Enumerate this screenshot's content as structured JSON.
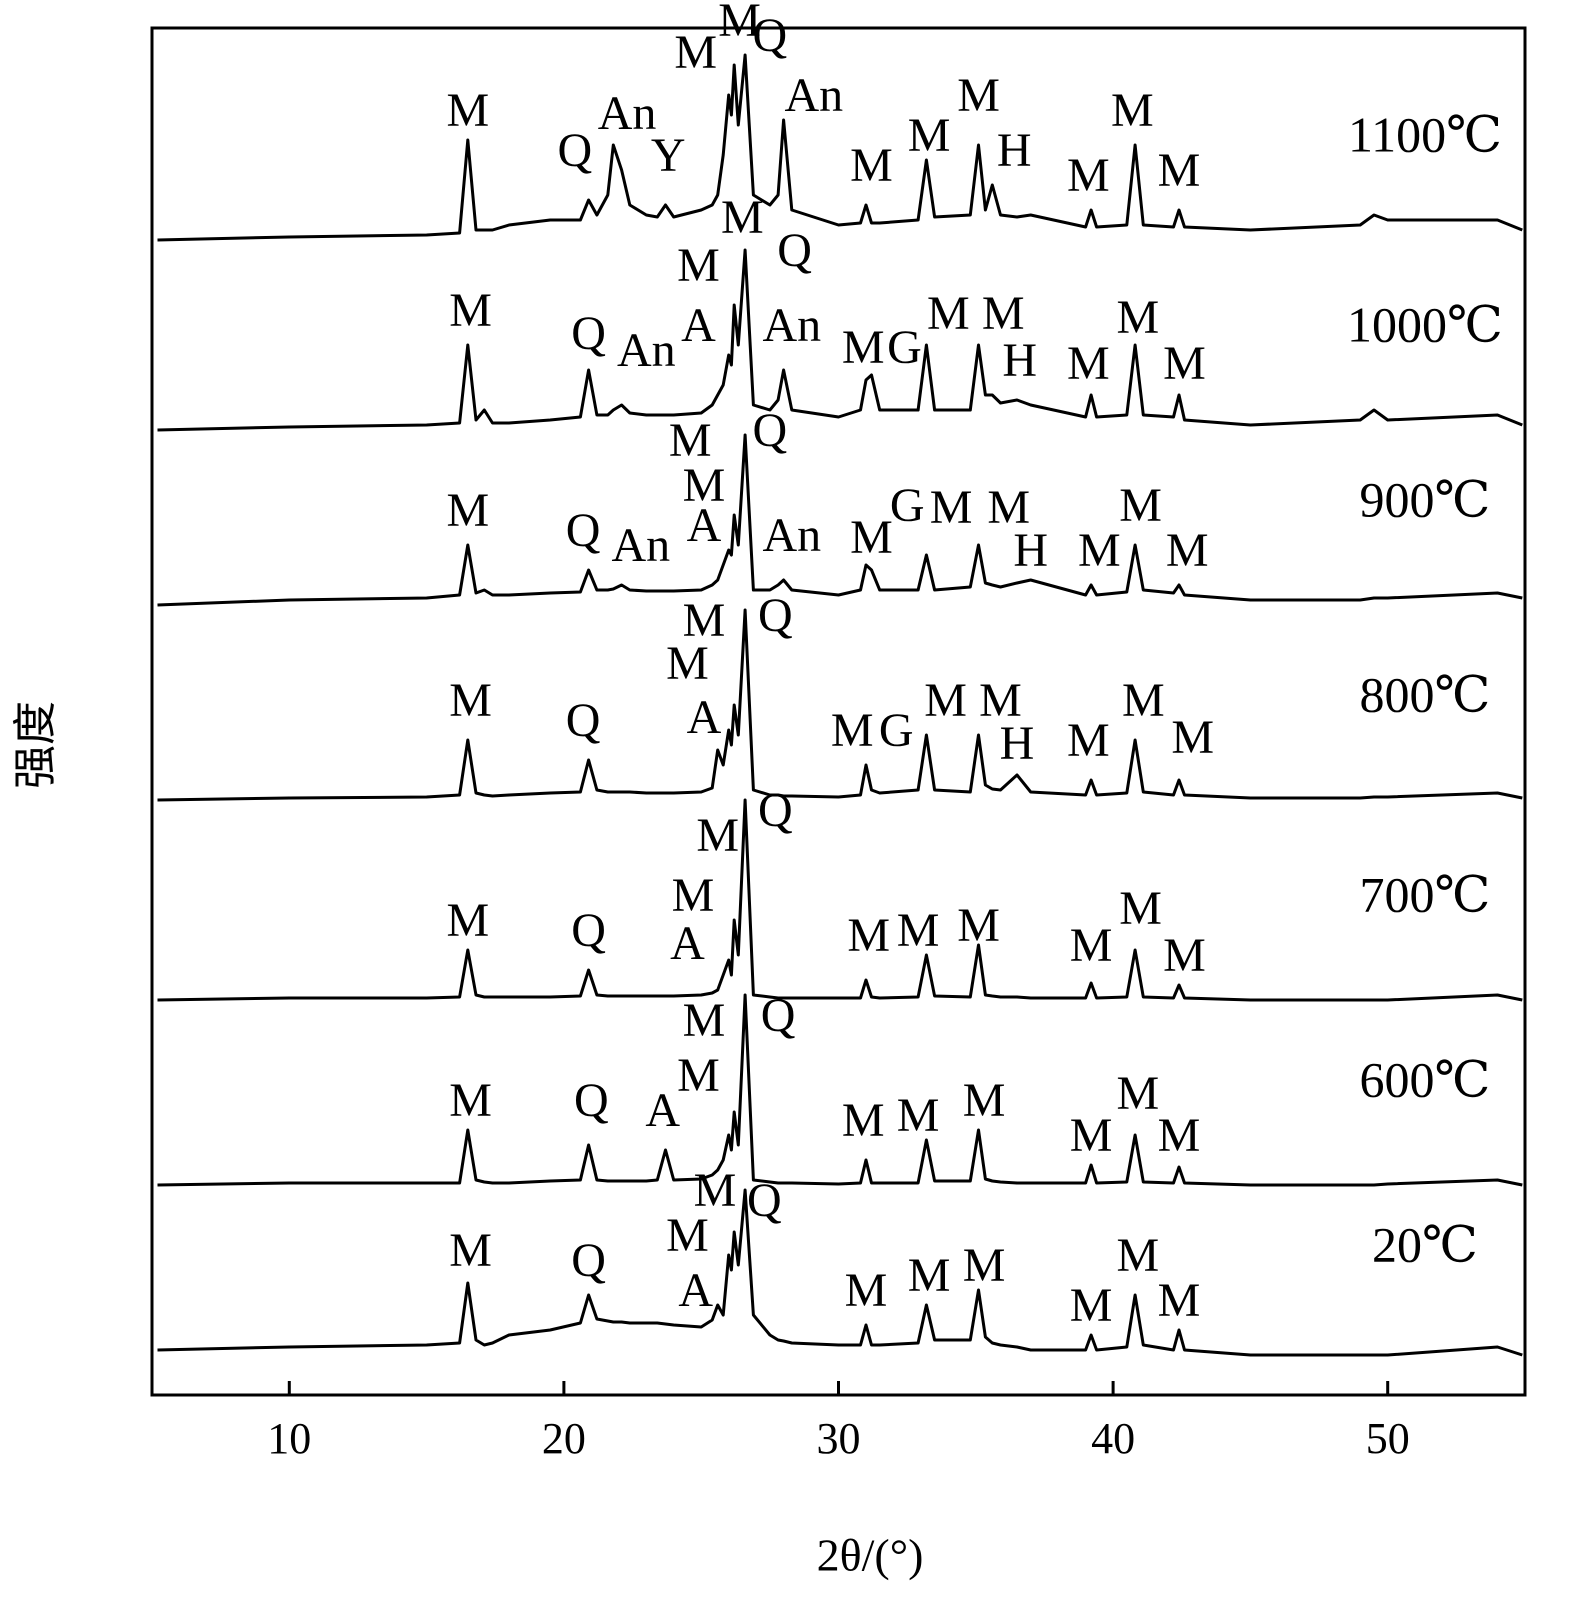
{
  "chart_data": {
    "type": "line",
    "xlabel": "2θ/(°)",
    "ylabel": "强度",
    "xlim": [
      5,
      55
    ],
    "xticks": [
      10,
      20,
      30,
      40,
      50
    ],
    "ylim": [
      0,
      1367
    ],
    "grid": false,
    "x": [
      5.2,
      10,
      15,
      16.2,
      16.5,
      16.8,
      17.1,
      17.4,
      18,
      19.5,
      20.6,
      20.9,
      21.2,
      21.6,
      21.8,
      22.1,
      22.4,
      23,
      23.4,
      23.7,
      24,
      25,
      25.4,
      25.6,
      25.8,
      26.0,
      26.1,
      26.2,
      26.35,
      26.6,
      26.9,
      27.5,
      27.8,
      28,
      28.3,
      30,
      30.8,
      31,
      31.2,
      31.5,
      32.9,
      33.2,
      33.5,
      34.8,
      35.1,
      35.35,
      35.6,
      35.9,
      36.5,
      37,
      39,
      39.2,
      39.4,
      40.5,
      40.8,
      41.1,
      42.2,
      42.4,
      42.6,
      45,
      49,
      49.5,
      50,
      54,
      54.9
    ],
    "series": [
      {
        "name": "20℃",
        "color": "#000000",
        "values": [
          45,
          48,
          50,
          52,
          112,
          55,
          50,
          52,
          60,
          65,
          72,
          100,
          76,
          74,
          73,
          73,
          72,
          72,
          72,
          71,
          70,
          68,
          75,
          90,
          80,
          140,
          125,
          163,
          130,
          205,
          80,
          60,
          55,
          54,
          52,
          50,
          50,
          70,
          50,
          50,
          52,
          90,
          55,
          55,
          105,
          58,
          52,
          50,
          48,
          45,
          45,
          60,
          45,
          48,
          100,
          50,
          45,
          65,
          45,
          40,
          40,
          40,
          40,
          48,
          40
        ]
      },
      {
        "name": "600℃",
        "color": "#000000",
        "values": [
          210,
          212,
          212,
          212,
          265,
          215,
          213,
          212,
          212,
          214,
          215,
          250,
          215,
          214,
          214,
          214,
          214,
          214,
          215,
          245,
          215,
          216,
          220,
          225,
          235,
          260,
          245,
          283,
          250,
          400,
          215,
          213,
          212,
          212,
          212,
          211,
          212,
          235,
          212,
          212,
          212,
          255,
          214,
          214,
          265,
          216,
          214,
          213,
          212,
          212,
          212,
          230,
          212,
          213,
          260,
          213,
          212,
          228,
          212,
          210,
          210,
          210,
          211,
          215,
          210
        ]
      },
      {
        "name": "700℃",
        "color": "#000000",
        "values": [
          395,
          397,
          397,
          398,
          445,
          400,
          398,
          398,
          398,
          398,
          399,
          425,
          400,
          399,
          399,
          399,
          399,
          399,
          399,
          399,
          399,
          400,
          402,
          405,
          420,
          435,
          420,
          475,
          440,
          595,
          400,
          398,
          397,
          397,
          397,
          397,
          397,
          415,
          398,
          397,
          398,
          440,
          399,
          398,
          450,
          400,
          399,
          398,
          398,
          397,
          397,
          412,
          397,
          398,
          445,
          398,
          397,
          410,
          397,
          395,
          395,
          395,
          395,
          400,
          395
        ]
      },
      {
        "name": "800℃",
        "color": "#000000",
        "values": [
          595,
          597,
          598,
          600,
          655,
          602,
          600,
          599,
          600,
          602,
          603,
          635,
          605,
          603,
          603,
          603,
          603,
          602,
          602,
          602,
          602,
          603,
          607,
          645,
          630,
          665,
          650,
          690,
          660,
          785,
          605,
          600,
          600,
          599,
          599,
          598,
          600,
          630,
          605,
          602,
          605,
          660,
          605,
          603,
          660,
          610,
          606,
          605,
          620,
          603,
          600,
          615,
          600,
          602,
          655,
          603,
          600,
          615,
          600,
          597,
          597,
          598,
          598,
          602,
          597
        ]
      },
      {
        "name": "900℃",
        "color": "#000000",
        "values": [
          790,
          795,
          797,
          800,
          850,
          802,
          805,
          800,
          800,
          802,
          803,
          825,
          805,
          805,
          806,
          810,
          805,
          804,
          804,
          804,
          804,
          805,
          810,
          815,
          830,
          845,
          840,
          880,
          850,
          960,
          805,
          805,
          810,
          815,
          805,
          800,
          805,
          830,
          825,
          805,
          805,
          840,
          805,
          808,
          850,
          812,
          810,
          808,
          812,
          815,
          800,
          810,
          800,
          803,
          850,
          805,
          802,
          810,
          800,
          795,
          795,
          797,
          797,
          802,
          797
        ]
      },
      {
        "name": "1000℃",
        "color": "#000000",
        "values": [
          965,
          968,
          970,
          972,
          1050,
          975,
          985,
          972,
          972,
          975,
          978,
          1025,
          980,
          980,
          985,
          990,
          982,
          980,
          980,
          980,
          980,
          982,
          990,
          1000,
          1010,
          1040,
          1030,
          1090,
          1050,
          1145,
          990,
          985,
          995,
          1025,
          985,
          978,
          985,
          1015,
          1020,
          985,
          985,
          1050,
          985,
          985,
          1050,
          1000,
          1000,
          992,
          995,
          990,
          978,
          1000,
          978,
          980,
          1050,
          980,
          978,
          1000,
          975,
          970,
          975,
          985,
          975,
          980,
          970
        ]
      },
      {
        "name": "1100℃",
        "color": "#000000",
        "values": [
          1155,
          1158,
          1160,
          1162,
          1255,
          1165,
          1165,
          1165,
          1170,
          1175,
          1175,
          1195,
          1180,
          1200,
          1250,
          1225,
          1190,
          1180,
          1178,
          1190,
          1178,
          1185,
          1190,
          1200,
          1240,
          1300,
          1280,
          1330,
          1270,
          1340,
          1200,
          1190,
          1200,
          1275,
          1185,
          1170,
          1172,
          1190,
          1172,
          1172,
          1175,
          1235,
          1178,
          1180,
          1250,
          1185,
          1210,
          1180,
          1178,
          1180,
          1168,
          1185,
          1168,
          1170,
          1250,
          1170,
          1168,
          1185,
          1168,
          1165,
          1170,
          1180,
          1175,
          1175,
          1165
        ]
      }
    ],
    "annotations": [
      {
        "text": "M",
        "x": 16.6,
        "y": 140
      },
      {
        "text": "Q",
        "x": 20.9,
        "y": 130
      },
      {
        "text": "M",
        "x": 24.5,
        "y": 155
      },
      {
        "text": "A",
        "x": 24.8,
        "y": 100
      },
      {
        "text": "M",
        "x": 25.5,
        "y": 200
      },
      {
        "text": "Q",
        "x": 27.3,
        "y": 190
      },
      {
        "text": "M",
        "x": 31,
        "y": 100
      },
      {
        "text": "M",
        "x": 33.3,
        "y": 115
      },
      {
        "text": "M",
        "x": 35.3,
        "y": 125
      },
      {
        "text": "M",
        "x": 39.2,
        "y": 85
      },
      {
        "text": "M",
        "x": 40.9,
        "y": 135
      },
      {
        "text": "M",
        "x": 42.4,
        "y": 90
      },
      {
        "text": "M",
        "x": 16.6,
        "y": 290
      },
      {
        "text": "Q",
        "x": 21,
        "y": 290
      },
      {
        "text": "A",
        "x": 23.6,
        "y": 280
      },
      {
        "text": "M",
        "x": 24.9,
        "y": 315
      },
      {
        "text": "M",
        "x": 25.1,
        "y": 370
      },
      {
        "text": "Q",
        "x": 27.8,
        "y": 375
      },
      {
        "text": "M",
        "x": 30.9,
        "y": 270
      },
      {
        "text": "M",
        "x": 32.9,
        "y": 275
      },
      {
        "text": "M",
        "x": 35.3,
        "y": 290
      },
      {
        "text": "M",
        "x": 39.2,
        "y": 255
      },
      {
        "text": "M",
        "x": 40.9,
        "y": 297
      },
      {
        "text": "M",
        "x": 42.4,
        "y": 255
      },
      {
        "text": "M",
        "x": 16.5,
        "y": 470
      },
      {
        "text": "Q",
        "x": 20.9,
        "y": 460
      },
      {
        "text": "M",
        "x": 24.7,
        "y": 495
      },
      {
        "text": "A",
        "x": 24.5,
        "y": 447
      },
      {
        "text": "M",
        "x": 25.6,
        "y": 555
      },
      {
        "text": "Q",
        "x": 27.7,
        "y": 580
      },
      {
        "text": "M",
        "x": 31.1,
        "y": 455
      },
      {
        "text": "M",
        "x": 32.9,
        "y": 460
      },
      {
        "text": "M",
        "x": 35.1,
        "y": 465
      },
      {
        "text": "M",
        "x": 39.2,
        "y": 445
      },
      {
        "text": "M",
        "x": 41,
        "y": 482
      },
      {
        "text": "M",
        "x": 42.6,
        "y": 435
      },
      {
        "text": "M",
        "x": 16.6,
        "y": 690
      },
      {
        "text": "Q",
        "x": 20.7,
        "y": 670
      },
      {
        "text": "M",
        "x": 24.5,
        "y": 727
      },
      {
        "text": "A",
        "x": 25.1,
        "y": 673
      },
      {
        "text": "M",
        "x": 25.1,
        "y": 770
      },
      {
        "text": "Q",
        "x": 27.7,
        "y": 775
      },
      {
        "text": "M",
        "x": 30.5,
        "y": 660
      },
      {
        "text": "G",
        "x": 32.1,
        "y": 660
      },
      {
        "text": "M",
        "x": 33.9,
        "y": 690
      },
      {
        "text": "M",
        "x": 35.9,
        "y": 690
      },
      {
        "text": "H",
        "x": 36.5,
        "y": 647
      },
      {
        "text": "M",
        "x": 39.1,
        "y": 650
      },
      {
        "text": "M",
        "x": 41.1,
        "y": 690
      },
      {
        "text": "M",
        "x": 42.9,
        "y": 653
      },
      {
        "text": "M",
        "x": 16.5,
        "y": 880
      },
      {
        "text": "Q",
        "x": 20.7,
        "y": 860
      },
      {
        "text": "An",
        "x": 22.8,
        "y": 845
      },
      {
        "text": "A",
        "x": 25.1,
        "y": 865
      },
      {
        "text": "M",
        "x": 25.1,
        "y": 905
      },
      {
        "text": "M",
        "x": 24.6,
        "y": 950
      },
      {
        "text": "Q",
        "x": 27.5,
        "y": 960
      },
      {
        "text": "An",
        "x": 28.3,
        "y": 855
      },
      {
        "text": "M",
        "x": 31.2,
        "y": 853
      },
      {
        "text": "G",
        "x": 32.5,
        "y": 885
      },
      {
        "text": "M",
        "x": 34.1,
        "y": 883
      },
      {
        "text": "M",
        "x": 36.2,
        "y": 883
      },
      {
        "text": "H",
        "x": 37,
        "y": 840
      },
      {
        "text": "M",
        "x": 39.5,
        "y": 840
      },
      {
        "text": "M",
        "x": 41,
        "y": 885
      },
      {
        "text": "M",
        "x": 42.7,
        "y": 840
      },
      {
        "text": "M",
        "x": 16.6,
        "y": 1080
      },
      {
        "text": "Q",
        "x": 20.9,
        "y": 1057
      },
      {
        "text": "An",
        "x": 23,
        "y": 1040
      },
      {
        "text": "A",
        "x": 24.9,
        "y": 1065
      },
      {
        "text": "M",
        "x": 24.9,
        "y": 1125
      },
      {
        "text": "M",
        "x": 26.5,
        "y": 1173
      },
      {
        "text": "Q",
        "x": 28.4,
        "y": 1140
      },
      {
        "text": "An",
        "x": 28.3,
        "y": 1065
      },
      {
        "text": "M",
        "x": 30.9,
        "y": 1043
      },
      {
        "text": "G",
        "x": 32.4,
        "y": 1043
      },
      {
        "text": "M",
        "x": 34,
        "y": 1077
      },
      {
        "text": "M",
        "x": 36,
        "y": 1077
      },
      {
        "text": "H",
        "x": 36.6,
        "y": 1030
      },
      {
        "text": "M",
        "x": 39.1,
        "y": 1027
      },
      {
        "text": "M",
        "x": 40.9,
        "y": 1073
      },
      {
        "text": "M",
        "x": 42.6,
        "y": 1027
      },
      {
        "text": "M",
        "x": 16.5,
        "y": 1280
      },
      {
        "text": "Q",
        "x": 20.4,
        "y": 1240
      },
      {
        "text": "An",
        "x": 22.3,
        "y": 1277
      },
      {
        "text": "Y",
        "x": 23.8,
        "y": 1235
      },
      {
        "text": "M",
        "x": 24.8,
        "y": 1338
      },
      {
        "text": "M",
        "x": 26.4,
        "y": 1370
      },
      {
        "text": "Q",
        "x": 27.5,
        "y": 1355
      },
      {
        "text": "An",
        "x": 29.1,
        "y": 1295
      },
      {
        "text": "M",
        "x": 31.2,
        "y": 1225
      },
      {
        "text": "M",
        "x": 33.3,
        "y": 1255
      },
      {
        "text": "M",
        "x": 35.1,
        "y": 1295
      },
      {
        "text": "H",
        "x": 36.4,
        "y": 1240
      },
      {
        "text": "M",
        "x": 39.1,
        "y": 1215
      },
      {
        "text": "M",
        "x": 40.7,
        "y": 1280
      },
      {
        "text": "M",
        "x": 42.4,
        "y": 1220
      }
    ]
  }
}
